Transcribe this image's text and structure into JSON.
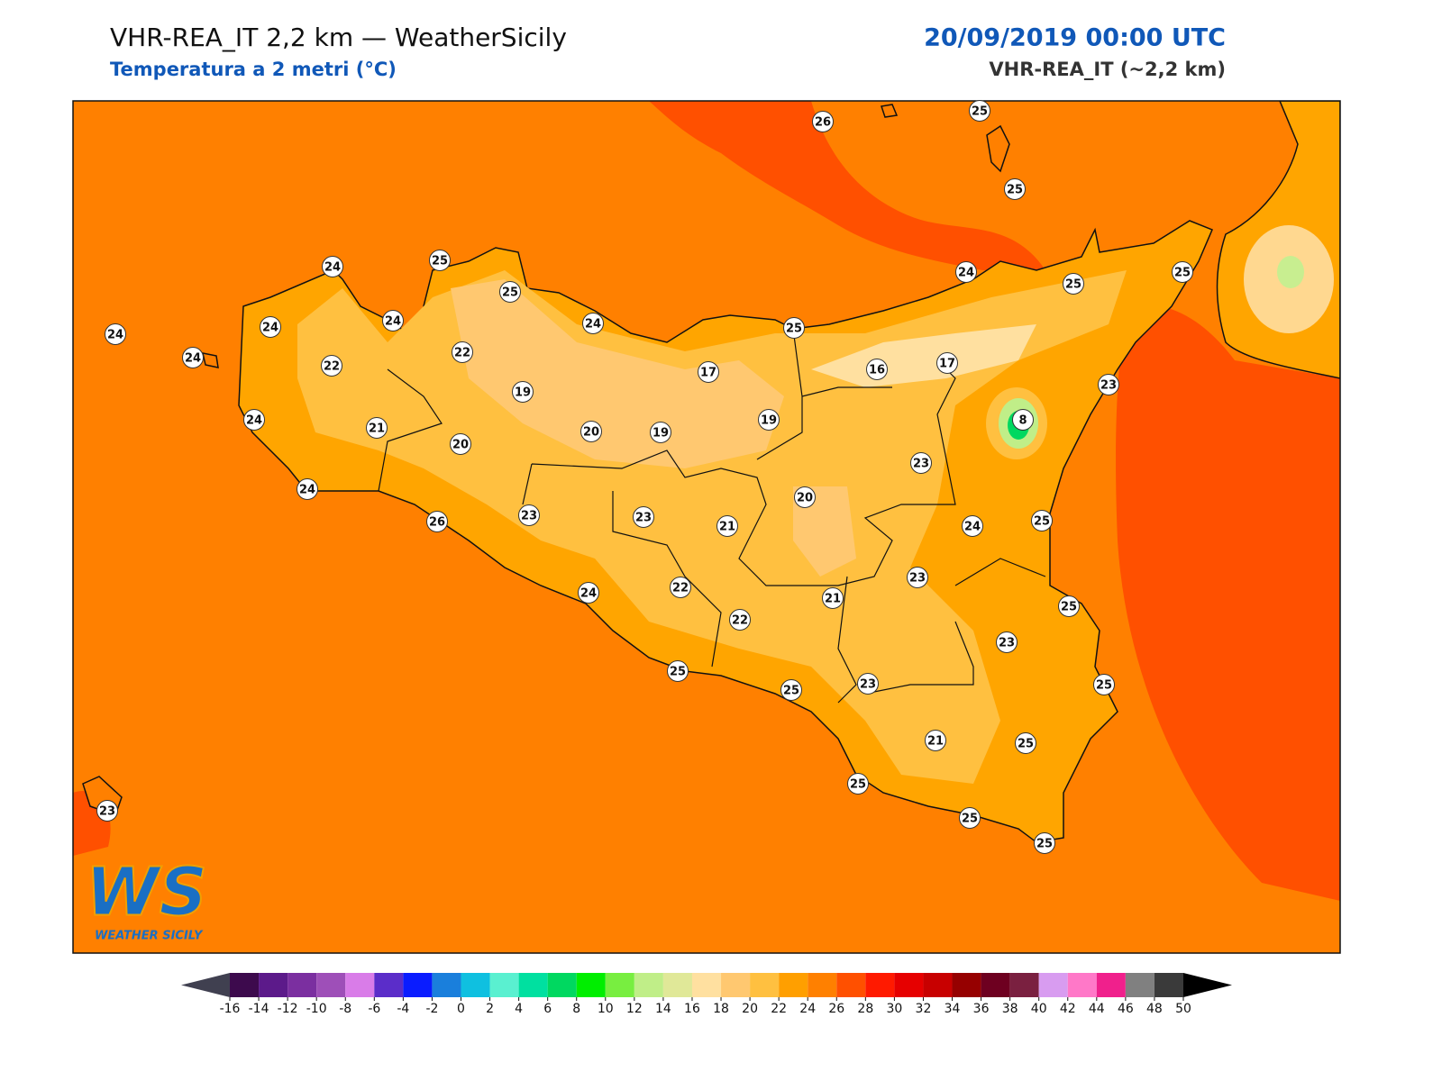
{
  "header": {
    "title": "VHR-REA_IT 2,2 km — WeatherSicily",
    "subtitle": "Temperatura a 2 metri (°C)",
    "datetime": "20/09/2019 00:00 UTC",
    "model": "VHR-REA_IT (~2,2 km)"
  },
  "logo": {
    "mark": "WS",
    "text": "WEATHER SICILY"
  },
  "stations": [
    26,
    25,
    25,
    24,
    25,
    25,
    24,
    24,
    24,
    24,
    24,
    22,
    22,
    25,
    24,
    25,
    25,
    17,
    16,
    17,
    19,
    23,
    19,
    8,
    24,
    21,
    20,
    19,
    20,
    23,
    24,
    20,
    26,
    23,
    23,
    21,
    24,
    25,
    23,
    24,
    22,
    21,
    25,
    22,
    23,
    25,
    25,
    23,
    25,
    21,
    25,
    25,
    25,
    25,
    23
  ],
  "colorbar": {
    "ticks": [
      -16,
      -14,
      -12,
      -10,
      -8,
      -6,
      -4,
      -2,
      0,
      2,
      4,
      6,
      8,
      10,
      12,
      14,
      16,
      18,
      20,
      22,
      24,
      26,
      28,
      30,
      32,
      34,
      36,
      38,
      40,
      42,
      44,
      46,
      48,
      50
    ],
    "colors": [
      "#3d0a4d",
      "#5c1a8a",
      "#7b2fa0",
      "#9e4fb8",
      "#d97ce8",
      "#5b2dc9",
      "#0a1cff",
      "#1a7fdc",
      "#0fc0e0",
      "#5af0d0",
      "#00e0a0",
      "#00d860",
      "#00ee00",
      "#78ee40",
      "#c0ee88",
      "#e0e898",
      "#ffe0a0",
      "#ffc870",
      "#ffc040",
      "#ff9f00",
      "#ff8000",
      "#ff5000",
      "#ff1a00",
      "#e60000",
      "#c80000",
      "#960000",
      "#6e0020",
      "#7a2040",
      "#d89cf0",
      "#ff78c8",
      "#f0208c",
      "#808080",
      "#3a3a3a"
    ],
    "under_color": "#404050",
    "over_color": "#000000"
  }
}
